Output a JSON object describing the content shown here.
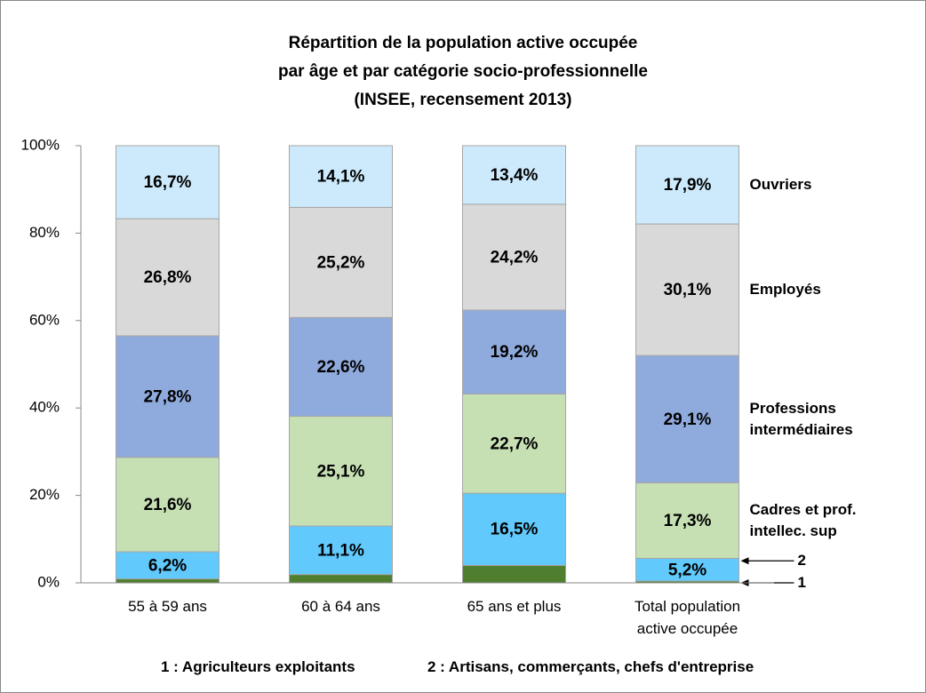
{
  "chart_data": {
    "type": "stacked_bar",
    "title": "Répartition de la population active occupée\npar âge et par catégorie socio-professionnelle\n(INSEE, recensement 2013)",
    "categories": [
      "55 à 59 ans",
      "60 à 64 ans",
      "65 ans et plus",
      "Total population\nactive occupée"
    ],
    "ylim": [
      0,
      100
    ],
    "yticks": [
      {
        "value": 0,
        "label": "0%"
      },
      {
        "value": 20,
        "label": "20%"
      },
      {
        "value": 40,
        "label": "40%"
      },
      {
        "value": 60,
        "label": "60%"
      },
      {
        "value": 80,
        "label": "80%"
      },
      {
        "value": 100,
        "label": "100%"
      }
    ],
    "series": [
      {
        "name": "1",
        "color": "#4f7f2e",
        "values": [
          0.9,
          1.9,
          4.0,
          0.4
        ],
        "value_labels": [
          null,
          null,
          null,
          null
        ]
      },
      {
        "name": "2",
        "color": "#61c9fb",
        "values": [
          6.2,
          11.1,
          16.5,
          5.2
        ],
        "value_labels": [
          "6,2%",
          "11,1%",
          "16,5%",
          "5,2%"
        ]
      },
      {
        "name": "Cadres et prof.\nintellec. sup",
        "color": "#c6e0b4",
        "values": [
          21.6,
          25.1,
          22.7,
          17.3
        ],
        "value_labels": [
          "21,6%",
          "25,1%",
          "22,7%",
          "17,3%"
        ]
      },
      {
        "name": "Professions\nintermédiaires",
        "color": "#8faadc",
        "values": [
          27.8,
          22.6,
          19.2,
          29.1
        ],
        "value_labels": [
          "27,8%",
          "22,6%",
          "19,2%",
          "29,1%"
        ]
      },
      {
        "name": "Employés",
        "color": "#d9d9d9",
        "values": [
          26.8,
          25.2,
          24.2,
          30.1
        ],
        "value_labels": [
          "26,8%",
          "25,2%",
          "24,2%",
          "30,1%"
        ]
      },
      {
        "name": "Ouvriers",
        "color": "#cdeafc",
        "values": [
          16.7,
          14.1,
          13.4,
          17.9
        ],
        "value_labels": [
          "16,7%",
          "14,1%",
          "13,4%",
          "17,9%"
        ]
      }
    ],
    "notes": [
      "1 : Agriculteurs exploitants",
      "2 : Artisans, commerçants, chefs d'entreprise"
    ]
  }
}
